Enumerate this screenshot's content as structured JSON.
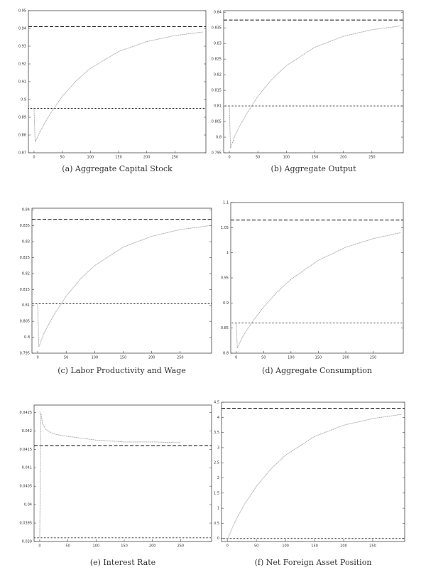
{
  "chart_data": [
    {
      "type": "line",
      "title": "(a) Aggregate Capital Stock",
      "x": [
        0,
        2,
        10,
        20,
        30,
        50,
        75,
        100,
        150,
        200,
        250,
        300
      ],
      "series": [
        {
          "color": "#9a9a9a",
          "values": [
            0.895,
            0.876,
            0.8815,
            0.8874,
            0.8926,
            0.9017,
            0.9106,
            0.9175,
            0.927,
            0.9326,
            0.936,
            0.938
          ]
        }
      ],
      "hlines": [
        {
          "value": 0.941,
          "style": "dashed"
        },
        {
          "value": 0.895,
          "style": "dotted"
        }
      ],
      "xlim": [
        -10,
        305
      ],
      "xticks": [
        0,
        50,
        100,
        150,
        200,
        250
      ],
      "ylim": [
        0.87,
        0.95
      ],
      "yticks": [
        0.87,
        0.88,
        0.89,
        0.9,
        0.91,
        0.92,
        0.93,
        0.94,
        0.95
      ]
    },
    {
      "type": "line",
      "title": "(b) Aggregate Output",
      "x": [
        0,
        2,
        10,
        20,
        30,
        50,
        75,
        100,
        150,
        200,
        250,
        300
      ],
      "series": [
        {
          "color": "#9a9a9a",
          "values": [
            0.81,
            0.7965,
            0.8006,
            0.8042,
            0.8074,
            0.8131,
            0.8186,
            0.8229,
            0.8288,
            0.8323,
            0.8344,
            0.8356
          ]
        }
      ],
      "hlines": [
        {
          "value": 0.8375,
          "style": "dashed"
        },
        {
          "value": 0.81,
          "style": "dotted"
        }
      ],
      "xlim": [
        -10,
        305
      ],
      "xticks": [
        0,
        50,
        100,
        150,
        200,
        250
      ],
      "ylim": [
        0.795,
        0.8405
      ],
      "yticks": [
        0.795,
        0.8,
        0.805,
        0.81,
        0.815,
        0.82,
        0.825,
        0.83,
        0.835,
        0.84
      ]
    },
    {
      "type": "line",
      "title": "(c) Labor Productivity and Wage",
      "x": [
        0,
        2,
        10,
        20,
        30,
        50,
        75,
        100,
        150,
        200,
        250,
        300
      ],
      "series": [
        {
          "color": "#9a9a9a",
          "values": [
            0.8105,
            0.797,
            0.8008,
            0.8043,
            0.8074,
            0.8129,
            0.8183,
            0.8225,
            0.8283,
            0.8317,
            0.8338,
            0.835
          ]
        }
      ],
      "hlines": [
        {
          "value": 0.837,
          "style": "dashed"
        },
        {
          "value": 0.8105,
          "style": "dotted"
        }
      ],
      "xlim": [
        -10,
        305
      ],
      "xticks": [
        0,
        50,
        100,
        150,
        200,
        250
      ],
      "ylim": [
        0.795,
        0.8405
      ],
      "yticks": [
        0.795,
        0.8,
        0.805,
        0.81,
        0.815,
        0.82,
        0.825,
        0.83,
        0.835,
        0.84
      ]
    },
    {
      "type": "line",
      "title": "(d) Aggregate Consumption",
      "x": [
        0,
        2,
        10,
        20,
        30,
        50,
        75,
        100,
        150,
        200,
        250,
        300
      ],
      "series": [
        {
          "color": "#9a9a9a",
          "values": [
            0.86,
            0.81,
            0.829,
            0.847,
            0.863,
            0.892,
            0.922,
            0.947,
            0.985,
            1.011,
            1.028,
            1.04
          ]
        }
      ],
      "hlines": [
        {
          "value": 1.065,
          "style": "dashed"
        },
        {
          "value": 0.86,
          "style": "dotted"
        }
      ],
      "xlim": [
        -10,
        305
      ],
      "xticks": [
        0,
        50,
        100,
        150,
        200,
        250
      ],
      "ylim": [
        0.8,
        1.1
      ],
      "yticks": [
        0.8,
        0.85,
        0.9,
        0.95,
        1,
        1.05,
        1.1
      ]
    },
    {
      "type": "line",
      "title": "(e) Interest Rate",
      "x": [
        0,
        2,
        5,
        10,
        20,
        30,
        50,
        75,
        100,
        150,
        200,
        250
      ],
      "series": [
        {
          "color": "#9a9a9a",
          "values": [
            0.0391,
            0.0425,
            0.0422,
            0.04205,
            0.04195,
            0.0419,
            0.04185,
            0.0418,
            0.04175,
            0.0417,
            0.0417,
            0.04168
          ]
        }
      ],
      "hlines": [
        {
          "value": 0.0416,
          "style": "dashed"
        },
        {
          "value": 0.0391,
          "style": "dotted"
        }
      ],
      "xlim": [
        -10,
        305
      ],
      "xticks": [
        0,
        50,
        100,
        150,
        200,
        250
      ],
      "ylim": [
        0.039,
        0.0427
      ],
      "yticks": [
        0.039,
        0.0395,
        0.04,
        0.0405,
        0.041,
        0.0415,
        0.042,
        0.0425
      ]
    },
    {
      "type": "line",
      "title": "(f) Net Foreign Asset Position",
      "x": [
        0,
        2,
        10,
        20,
        30,
        50,
        75,
        100,
        150,
        200,
        250,
        300
      ],
      "series": [
        {
          "color": "#9a9a9a",
          "values": [
            0,
            0.05,
            0.416,
            0.8,
            1.14,
            1.72,
            2.3,
            2.75,
            3.37,
            3.74,
            3.96,
            4.1
          ]
        }
      ],
      "hlines": [
        {
          "value": 4.3,
          "style": "dashed"
        },
        {
          "value": 0,
          "style": "dotted"
        }
      ],
      "xlim": [
        -10,
        305
      ],
      "xticks": [
        0,
        50,
        100,
        150,
        200,
        250
      ],
      "ylim": [
        -0.1,
        4.5
      ],
      "yticks": [
        0,
        0.5,
        1,
        1.5,
        2,
        2.5,
        3,
        3.5,
        4,
        4.5
      ]
    }
  ]
}
